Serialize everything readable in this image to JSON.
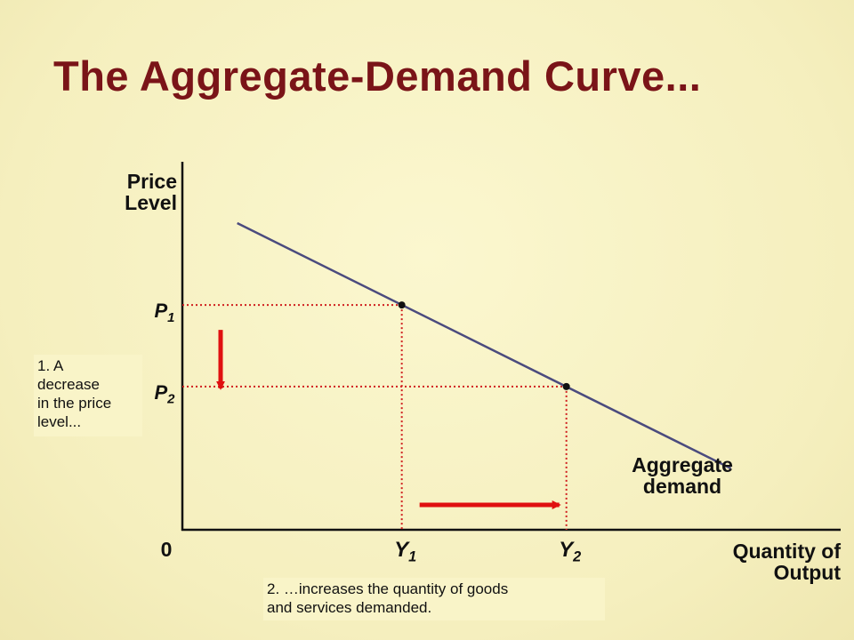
{
  "title": "The Aggregate-Demand Curve...",
  "colors": {
    "background": "#f6f0c4",
    "title": "#7a1418",
    "curve": "#4b4b7e",
    "guide": "#d02020",
    "arrow": "#e01010"
  },
  "chart_data": {
    "type": "line",
    "xlabel": [
      "Quantity of",
      "Output"
    ],
    "ylabel": [
      "Price",
      "Level"
    ],
    "origin_label": "0",
    "x_ticks": [
      {
        "main": "Y",
        "sub": "1"
      },
      {
        "main": "Y",
        "sub": "2"
      }
    ],
    "y_ticks": [
      {
        "main": "P",
        "sub": "1"
      },
      {
        "main": "P",
        "sub": "2"
      }
    ],
    "series": [
      {
        "name": "Aggregate demand",
        "label_lines": [
          "Aggregate",
          "demand"
        ],
        "x": [
          1,
          10
        ],
        "y": [
          10,
          2
        ]
      }
    ],
    "points": [
      {
        "label": "P1,Y1",
        "x": 4,
        "y": 7.33
      },
      {
        "label": "P2,Y2",
        "x": 7,
        "y": 4.67
      }
    ],
    "xlim": [
      0,
      12
    ],
    "ylim": [
      0,
      12
    ],
    "grid": false
  },
  "annotations": {
    "note_1": [
      "1. A",
      "decrease",
      "in the price",
      "level..."
    ],
    "note_2": [
      "2. …increases the quantity of goods",
      "and services demanded."
    ]
  }
}
